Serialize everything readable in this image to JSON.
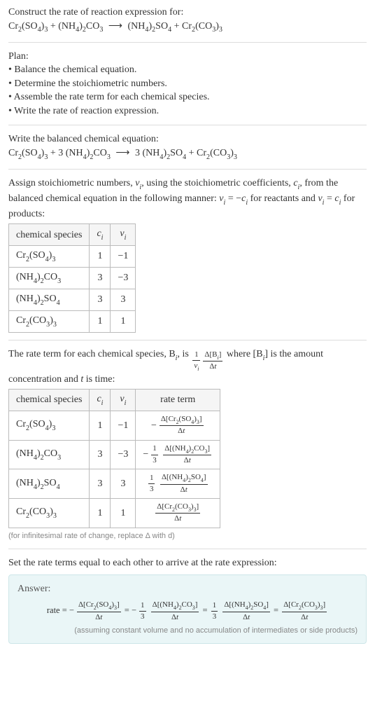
{
  "intro": {
    "title": "Construct the rate of reaction expression for:",
    "equation_html": "Cr<span class='sub'>2</span>(SO<span class='sub'>4</span>)<span class='sub'>3</span> + (NH<span class='sub'>4</span>)<span class='sub'>2</span>CO<span class='sub'>3</span> <span class='arrow'>⟶</span> (NH<span class='sub'>4</span>)<span class='sub'>2</span>SO<span class='sub'>4</span> + Cr<span class='sub'>2</span>(CO<span class='sub'>3</span>)<span class='sub'>3</span>"
  },
  "plan": {
    "label": "Plan:",
    "items": [
      "Balance the chemical equation.",
      "Determine the stoichiometric numbers.",
      "Assemble the rate term for each chemical species.",
      "Write the rate of reaction expression."
    ]
  },
  "balanced": {
    "label": "Write the balanced chemical equation:",
    "equation_html": "Cr<span class='sub'>2</span>(SO<span class='sub'>4</span>)<span class='sub'>3</span> + 3 (NH<span class='sub'>4</span>)<span class='sub'>2</span>CO<span class='sub'>3</span> <span class='arrow'>⟶</span> 3 (NH<span class='sub'>4</span>)<span class='sub'>2</span>SO<span class='sub'>4</span> + Cr<span class='sub'>2</span>(CO<span class='sub'>3</span>)<span class='sub'>3</span>"
  },
  "stoich": {
    "desc_html": "Assign stoichiometric numbers, <span class='italic'>ν<span class='sub'>i</span></span>, using the stoichiometric coefficients, <span class='italic'>c<span class='sub'>i</span></span>, from the balanced chemical equation in the following manner: <span class='italic'>ν<span class='sub'>i</span></span> = −<span class='italic'>c<span class='sub'>i</span></span> for reactants and <span class='italic'>ν<span class='sub'>i</span></span> = <span class='italic'>c<span class='sub'>i</span></span> for products:",
    "headers": [
      "chemical species",
      "c_i",
      "ν_i"
    ],
    "rows": [
      {
        "species_html": "Cr<span class='sub'>2</span>(SO<span class='sub'>4</span>)<span class='sub'>3</span>",
        "c": "1",
        "nu": "−1"
      },
      {
        "species_html": "(NH<span class='sub'>4</span>)<span class='sub'>2</span>CO<span class='sub'>3</span>",
        "c": "3",
        "nu": "−3"
      },
      {
        "species_html": "(NH<span class='sub'>4</span>)<span class='sub'>2</span>SO<span class='sub'>4</span>",
        "c": "3",
        "nu": "3"
      },
      {
        "species_html": "Cr<span class='sub'>2</span>(CO<span class='sub'>3</span>)<span class='sub'>3</span>",
        "c": "1",
        "nu": "1"
      }
    ]
  },
  "rate_term": {
    "desc_pre": "The rate term for each chemical species, B",
    "desc_mid1": ", is ",
    "desc_mid2": " where [B",
    "desc_post": "] is the amount concentration and ",
    "desc_time": " is time:",
    "headers": [
      "chemical species",
      "c_i",
      "ν_i",
      "rate term"
    ],
    "rows": [
      {
        "species_html": "Cr<span class='sub'>2</span>(SO<span class='sub'>4</span>)<span class='sub'>3</span>",
        "c": "1",
        "nu": "−1",
        "term_html": "<span class='neg'>−</span><span class='frac small'><span class='num'>Δ[Cr<span class='sub'>2</span>(SO<span class='sub'>4</span>)<span class='sub'>3</span>]</span><span class='den'>Δ<span class='italic'>t</span></span></span>"
      },
      {
        "species_html": "(NH<span class='sub'>4</span>)<span class='sub'>2</span>CO<span class='sub'>3</span>",
        "c": "3",
        "nu": "−3",
        "term_html": "<span class='neg'>−</span><span class='frac small'><span class='num'>1</span><span class='den'>3</span></span> <span class='frac small'><span class='num'>Δ[(NH<span class='sub'>4</span>)<span class='sub'>2</span>CO<span class='sub'>3</span>]</span><span class='den'>Δ<span class='italic'>t</span></span></span>"
      },
      {
        "species_html": "(NH<span class='sub'>4</span>)<span class='sub'>2</span>SO<span class='sub'>4</span>",
        "c": "3",
        "nu": "3",
        "term_html": "<span class='frac small'><span class='num'>1</span><span class='den'>3</span></span> <span class='frac small'><span class='num'>Δ[(NH<span class='sub'>4</span>)<span class='sub'>2</span>SO<span class='sub'>4</span>]</span><span class='den'>Δ<span class='italic'>t</span></span></span>"
      },
      {
        "species_html": "Cr<span class='sub'>2</span>(CO<span class='sub'>3</span>)<span class='sub'>3</span>",
        "c": "1",
        "nu": "1",
        "term_html": "<span class='frac small'><span class='num'>Δ[Cr<span class='sub'>2</span>(CO<span class='sub'>3</span>)<span class='sub'>3</span>]</span><span class='den'>Δ<span class='italic'>t</span></span></span>"
      }
    ],
    "caption": "(for infinitesimal rate of change, replace Δ with d)"
  },
  "final": {
    "desc": "Set the rate terms equal to each other to arrive at the rate expression:",
    "answer_label": "Answer:",
    "rate_html": "rate = <span class='neg'>−</span><span class='frac'><span class='num'>Δ[Cr<span class='sub'>2</span>(SO<span class='sub'>4</span>)<span class='sub'>3</span>]</span><span class='den'>Δ<span class='italic'>t</span></span></span> = <span class='neg'>−</span><span class='frac'><span class='num'>1</span><span class='den'>3</span></span> <span class='frac'><span class='num'>Δ[(NH<span class='sub'>4</span>)<span class='sub'>2</span>CO<span class='sub'>3</span>]</span><span class='den'>Δ<span class='italic'>t</span></span></span> = <span class='frac'><span class='num'>1</span><span class='den'>3</span></span> <span class='frac'><span class='num'>Δ[(NH<span class='sub'>4</span>)<span class='sub'>2</span>SO<span class='sub'>4</span>]</span><span class='den'>Δ<span class='italic'>t</span></span></span> = <span class='frac'><span class='num'>Δ[Cr<span class='sub'>2</span>(CO<span class='sub'>3</span>)<span class='sub'>3</span>]</span><span class='den'>Δ<span class='italic'>t</span></span></span>",
    "caption": "(assuming constant volume and no accumulation of intermediates or side products)"
  },
  "colors": {
    "text": "#333333",
    "border": "#dddddd",
    "table_border": "#bbbbbb",
    "header_bg": "#f5f5f5",
    "answer_bg": "#eaf6f7",
    "answer_border": "#cde6e8",
    "caption": "#888888"
  }
}
